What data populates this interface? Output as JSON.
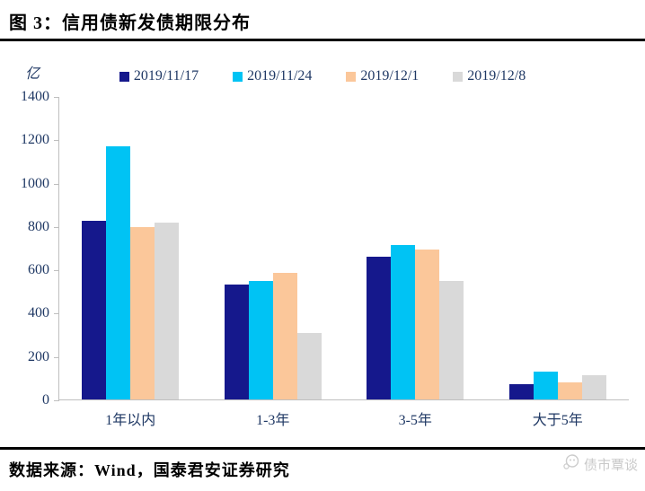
{
  "title": "图 3：信用债新发债期限分布",
  "chart_data": {
    "type": "bar",
    "title": "信用债新发债期限分布",
    "unit_label": "亿",
    "categories": [
      "1年以内",
      "1-3年",
      "3-5年",
      "大于5年"
    ],
    "series": [
      {
        "name": "2019/11/17",
        "color": "#15188c",
        "values": [
          825,
          530,
          660,
          70
        ]
      },
      {
        "name": "2019/11/24",
        "color": "#00c3f4",
        "values": [
          1170,
          545,
          712,
          130
        ]
      },
      {
        "name": "2019/12/1",
        "color": "#fbc79a",
        "values": [
          795,
          583,
          690,
          80
        ]
      },
      {
        "name": "2019/12/8",
        "color": "#d9d9d9",
        "values": [
          815,
          308,
          545,
          110
        ]
      }
    ],
    "ylim": [
      0,
      1400
    ],
    "yticks": [
      0,
      200,
      400,
      600,
      800,
      1000,
      1200,
      1400
    ],
    "grid": false,
    "legend_position": "top"
  },
  "footer": {
    "source": "数据来源：Wind，国泰君安证券研究",
    "watermark": "债市覃谈"
  },
  "colors": {
    "axis_line": "#bfbfbf",
    "axis_text": "#1f3864",
    "rule": "#000000"
  }
}
